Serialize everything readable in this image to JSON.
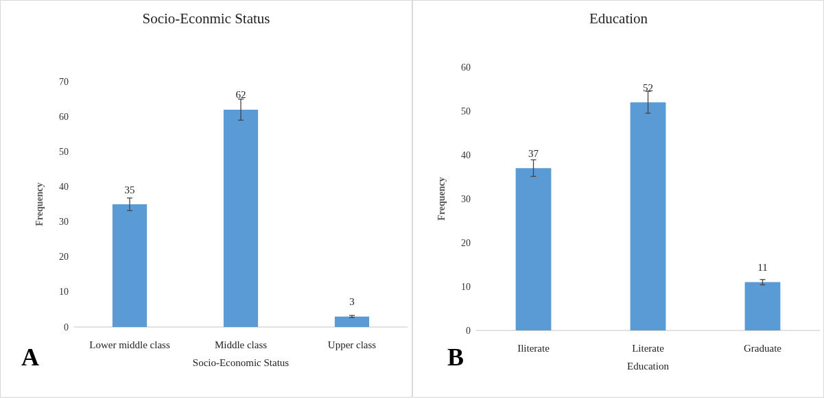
{
  "chart_data": [
    {
      "type": "bar",
      "title": "Socio-Econmic Status",
      "xlabel": "Socio-Economic Status",
      "ylabel": "Frequency",
      "categories": [
        "Lower middle class",
        "Middle class",
        "Upper class"
      ],
      "values": [
        35,
        62,
        3
      ],
      "errors": [
        1.8,
        3,
        0.3
      ],
      "color": "#5b9bd5",
      "ylim": [
        0,
        70
      ],
      "yticks": [
        0,
        10,
        20,
        30,
        40,
        50,
        60,
        70
      ],
      "data_labels": true,
      "grid": false,
      "annotations": [
        "A"
      ]
    },
    {
      "type": "bar",
      "title": "Education",
      "xlabel": "Education",
      "ylabel": "Frequency",
      "categories": [
        "Iliterate",
        "Literate",
        "Graduate"
      ],
      "values": [
        37,
        52,
        11
      ],
      "errors": [
        1.9,
        2.5,
        0.6
      ],
      "color": "#5b9bd5",
      "ylim": [
        0,
        60
      ],
      "yticks": [
        0,
        10,
        20,
        30,
        40,
        50,
        60
      ],
      "data_labels": true,
      "grid": false,
      "annotations": [
        "B"
      ]
    }
  ]
}
